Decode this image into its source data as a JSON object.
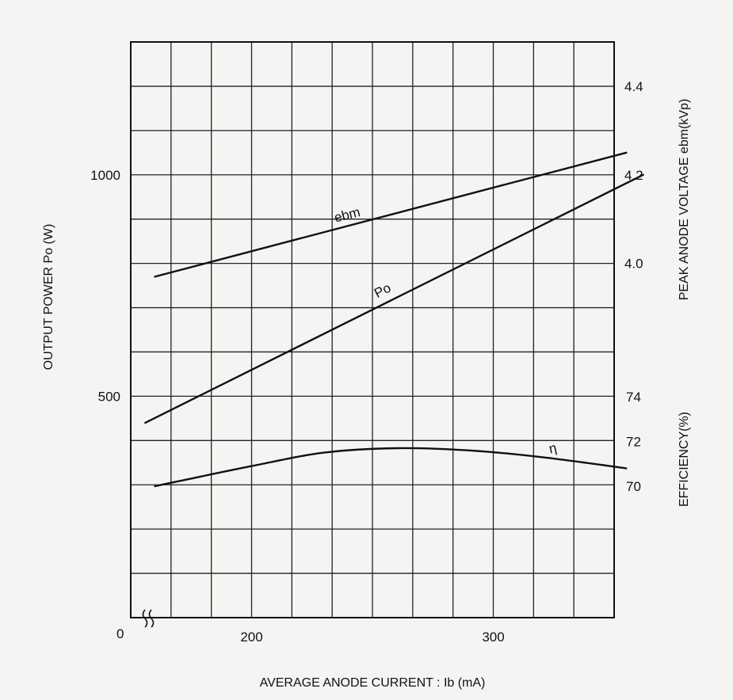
{
  "chart_data": {
    "type": "line",
    "xlabel": "AVERAGE ANODE CURRENT : Ib (mA)",
    "ylabel": "OUTPUT POWER Po (W)",
    "y2label": "PEAK ANODE VOLTAGE ebm(kVp)",
    "y3label": "EFFICIENCY(%)",
    "origin_label": "0",
    "xlim": [
      150,
      350
    ],
    "ylim": [
      0,
      1300
    ],
    "axis_break": true,
    "grid": true,
    "x_ticks": [
      {
        "value": 200,
        "label": "200"
      },
      {
        "value": 300,
        "label": "300"
      }
    ],
    "y_ticks": [
      {
        "value": 500,
        "label": "500"
      },
      {
        "value": 1000,
        "label": "1000"
      }
    ],
    "voltage_axis": {
      "unit": "kVp",
      "range": [
        3.8,
        4.4
      ],
      "ticks": [
        {
          "value": 4.0,
          "label": "4.0"
        },
        {
          "value": 4.2,
          "label": "4.2"
        },
        {
          "value": 4.4,
          "label": "4.4"
        }
      ]
    },
    "efficiency_axis": {
      "unit": "%",
      "range": [
        68,
        76
      ],
      "ticks": [
        {
          "value": 70,
          "label": "70"
        },
        {
          "value": 72,
          "label": "72"
        },
        {
          "value": 74,
          "label": "74"
        }
      ]
    },
    "series": [
      {
        "name": "ebm",
        "axis": "voltage",
        "x": [
          160,
          355
        ],
        "y": [
          3.97,
          4.25
        ],
        "label_at": {
          "x": 240,
          "y": 4.1
        },
        "label_angle": -14
      },
      {
        "name": "Po",
        "axis": "power",
        "x": [
          156,
          362
        ],
        "y": [
          440,
          1000
        ],
        "label_at": {
          "x": 255,
          "y": 730
        },
        "label_angle": -27
      },
      {
        "name": "η",
        "axis": "efficiency",
        "x": [
          160,
          200,
          230,
          260,
          290,
          320,
          355
        ],
        "y": [
          70.0,
          70.9,
          71.5,
          71.7,
          71.6,
          71.3,
          70.8
        ],
        "label_at": {
          "x": 325,
          "y": 71.5
        },
        "label_angle": -12
      }
    ]
  }
}
